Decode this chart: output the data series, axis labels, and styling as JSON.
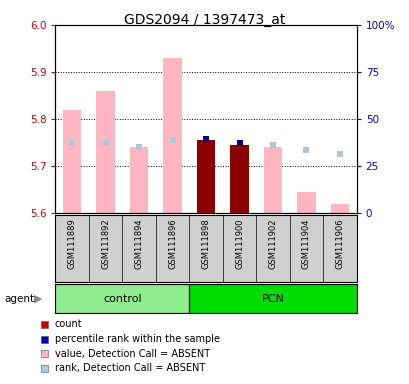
{
  "title": "GDS2094 / 1397473_at",
  "samples": [
    "GSM111889",
    "GSM111892",
    "GSM111894",
    "GSM111896",
    "GSM111898",
    "GSM111900",
    "GSM111902",
    "GSM111904",
    "GSM111906"
  ],
  "ylim_left": [
    5.6,
    6.0
  ],
  "ylim_right": [
    0,
    100
  ],
  "yticks_left": [
    5.6,
    5.7,
    5.8,
    5.9,
    6.0
  ],
  "yticks_right": [
    0,
    25,
    50,
    75,
    100
  ],
  "ytick_labels_right": [
    "0",
    "25",
    "50",
    "75",
    "100%"
  ],
  "value_absent": [
    5.82,
    5.86,
    5.74,
    5.93,
    null,
    null,
    5.74,
    5.645,
    5.62
  ],
  "rank_absent_y": [
    5.75,
    5.75,
    5.74,
    5.755,
    null,
    null,
    5.745,
    5.735,
    5.725
  ],
  "value_present": [
    null,
    null,
    null,
    null,
    5.755,
    5.745,
    null,
    null,
    null
  ],
  "rank_present_y": [
    null,
    null,
    null,
    null,
    5.758,
    5.75,
    null,
    null,
    null
  ],
  "color_value_absent": "#FFB6C1",
  "color_rank_absent": "#B0C4DE",
  "color_value_present": "#8B0000",
  "color_rank_present": "#00008B",
  "group_control_color": "#90EE90",
  "group_pcn_color": "#00DD00",
  "base": 5.6,
  "tick_color_left": "#CC0000",
  "tick_color_right": "#0000CC",
  "legend_items": [
    {
      "color": "#CC0000",
      "label": "count"
    },
    {
      "color": "#0000CC",
      "label": "percentile rank within the sample"
    },
    {
      "color": "#FFB6C1",
      "label": "value, Detection Call = ABSENT"
    },
    {
      "color": "#B0C4DE",
      "label": "rank, Detection Call = ABSENT"
    }
  ]
}
